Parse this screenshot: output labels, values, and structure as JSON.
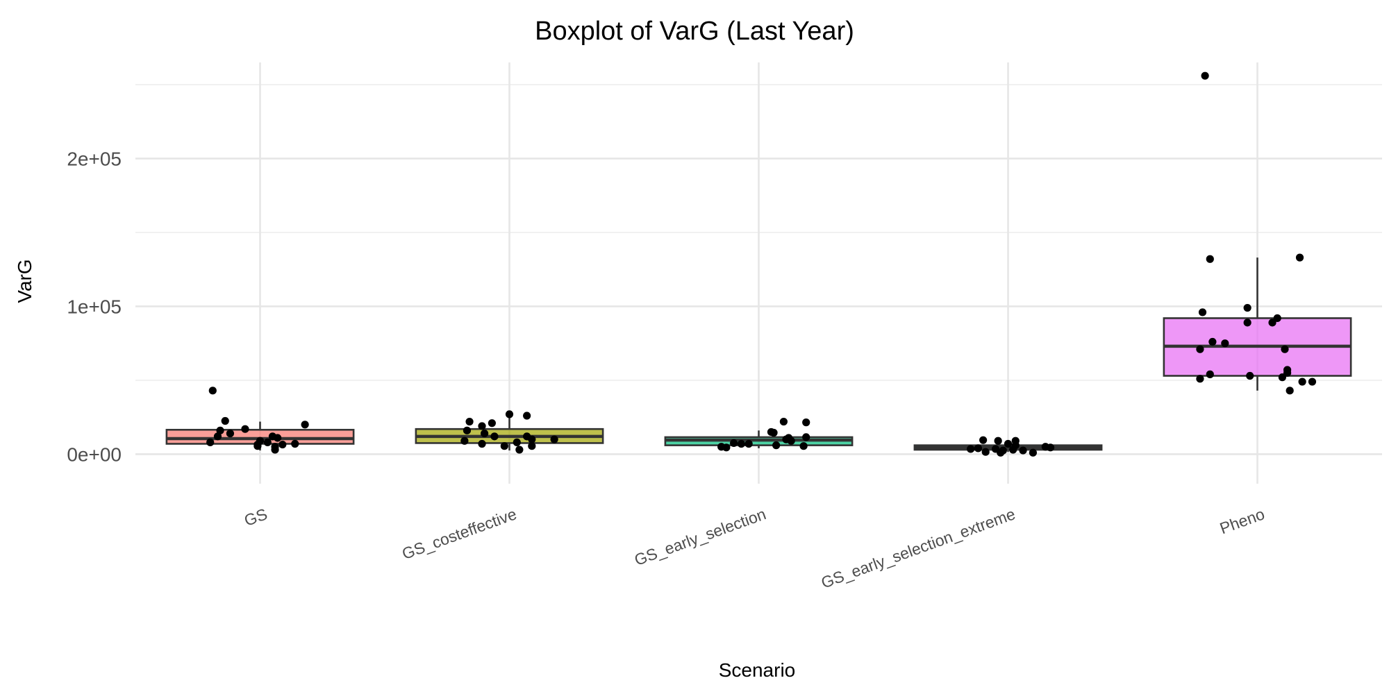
{
  "chart_data": {
    "type": "boxplot",
    "title": "Boxplot of VarG (Last Year)",
    "xlabel": "Scenario",
    "ylabel": "VarG",
    "categories": [
      "GS",
      "GS_costeffective",
      "GS_early_selection",
      "GS_early_selection_extreme",
      "Pheno"
    ],
    "ylim": [
      -20000,
      265000
    ],
    "y_ticks": [
      0,
      100000,
      200000
    ],
    "y_tick_labels": [
      "0e+00",
      "1e+05",
      "2e+05"
    ],
    "y_minor_ticks": [
      50000,
      150000,
      250000
    ],
    "grid": true,
    "legend": "none",
    "boxes": [
      {
        "category": "GS",
        "color": "#F8766D",
        "q1": 7000,
        "median": 10500,
        "q3": 16500,
        "whisker_low": 2500,
        "whisker_high": 22000
      },
      {
        "category": "GS_costeffective",
        "color": "#A3A500",
        "q1": 7500,
        "median": 12000,
        "q3": 17000,
        "whisker_low": 2500,
        "whisker_high": 27000
      },
      {
        "category": "GS_early_selection",
        "color": "#00BF7D",
        "q1": 6000,
        "median": 9500,
        "q3": 11500,
        "whisker_low": 4000,
        "whisker_high": 16000
      },
      {
        "category": "GS_early_selection_extreme",
        "color": "#00B0F6",
        "q1": 3000,
        "median": 4500,
        "q3": 6000,
        "whisker_low": 1500,
        "whisker_high": 9500
      },
      {
        "category": "Pheno",
        "color": "#E76BF3",
        "q1": 53000,
        "median": 73000,
        "q3": 92000,
        "whisker_low": 43000,
        "whisker_high": 133000
      }
    ],
    "points": [
      {
        "category": "GS",
        "jitter": -0.19,
        "y": 43000
      },
      {
        "category": "GS",
        "jitter": -0.14,
        "y": 22500
      },
      {
        "category": "GS",
        "jitter": -0.16,
        "y": 16000
      },
      {
        "category": "GS",
        "jitter": -0.06,
        "y": 17000
      },
      {
        "category": "GS",
        "jitter": 0.18,
        "y": 20000
      },
      {
        "category": "GS",
        "jitter": -0.17,
        "y": 12000
      },
      {
        "category": "GS",
        "jitter": -0.12,
        "y": 14000
      },
      {
        "category": "GS",
        "jitter": 0.05,
        "y": 12000
      },
      {
        "category": "GS",
        "jitter": 0.07,
        "y": 11000
      },
      {
        "category": "GS",
        "jitter": 0.0,
        "y": 9000
      },
      {
        "category": "GS",
        "jitter": 0.03,
        "y": 8000
      },
      {
        "category": "GS",
        "jitter": -0.2,
        "y": 8000
      },
      {
        "category": "GS",
        "jitter": -0.01,
        "y": 6500
      },
      {
        "category": "GS",
        "jitter": 0.09,
        "y": 6500
      },
      {
        "category": "GS",
        "jitter": 0.14,
        "y": 7000
      },
      {
        "category": "GS",
        "jitter": 0.06,
        "y": 5000
      },
      {
        "category": "GS",
        "jitter": -0.01,
        "y": 5500
      },
      {
        "category": "GS",
        "jitter": 0.06,
        "y": 3000
      },
      {
        "category": "GS_costeffective",
        "jitter": -0.16,
        "y": 22000
      },
      {
        "category": "GS_costeffective",
        "jitter": 0.0,
        "y": 27000
      },
      {
        "category": "GS_costeffective",
        "jitter": 0.07,
        "y": 26000
      },
      {
        "category": "GS_costeffective",
        "jitter": -0.11,
        "y": 19000
      },
      {
        "category": "GS_costeffective",
        "jitter": -0.07,
        "y": 21000
      },
      {
        "category": "GS_costeffective",
        "jitter": -0.17,
        "y": 16000
      },
      {
        "category": "GS_costeffective",
        "jitter": -0.1,
        "y": 14000
      },
      {
        "category": "GS_costeffective",
        "jitter": -0.06,
        "y": 12000
      },
      {
        "category": "GS_costeffective",
        "jitter": 0.07,
        "y": 12000
      },
      {
        "category": "GS_costeffective",
        "jitter": -0.18,
        "y": 9000
      },
      {
        "category": "GS_costeffective",
        "jitter": -0.11,
        "y": 7000
      },
      {
        "category": "GS_costeffective",
        "jitter": 0.09,
        "y": 10000
      },
      {
        "category": "GS_costeffective",
        "jitter": 0.18,
        "y": 10000
      },
      {
        "category": "GS_costeffective",
        "jitter": -0.02,
        "y": 5500
      },
      {
        "category": "GS_costeffective",
        "jitter": 0.03,
        "y": 8000
      },
      {
        "category": "GS_costeffective",
        "jitter": 0.04,
        "y": 3000
      },
      {
        "category": "GS_costeffective",
        "jitter": 0.09,
        "y": 5500
      },
      {
        "category": "GS_early_selection",
        "jitter": 0.1,
        "y": 22000
      },
      {
        "category": "GS_early_selection",
        "jitter": 0.19,
        "y": 21500
      },
      {
        "category": "GS_early_selection",
        "jitter": 0.05,
        "y": 15000
      },
      {
        "category": "GS_early_selection",
        "jitter": 0.06,
        "y": 14500
      },
      {
        "category": "GS_early_selection",
        "jitter": 0.12,
        "y": 11000
      },
      {
        "category": "GS_early_selection",
        "jitter": 0.19,
        "y": 11500
      },
      {
        "category": "GS_early_selection",
        "jitter": 0.11,
        "y": 10000
      },
      {
        "category": "GS_early_selection",
        "jitter": 0.13,
        "y": 9000
      },
      {
        "category": "GS_early_selection",
        "jitter": -0.1,
        "y": 7500
      },
      {
        "category": "GS_early_selection",
        "jitter": -0.07,
        "y": 7000
      },
      {
        "category": "GS_early_selection",
        "jitter": -0.04,
        "y": 7000
      },
      {
        "category": "GS_early_selection",
        "jitter": -0.15,
        "y": 5000
      },
      {
        "category": "GS_early_selection",
        "jitter": -0.13,
        "y": 4500
      },
      {
        "category": "GS_early_selection",
        "jitter": 0.07,
        "y": 6000
      },
      {
        "category": "GS_early_selection",
        "jitter": 0.18,
        "y": 5500
      },
      {
        "category": "GS_early_selection_extreme",
        "jitter": -0.1,
        "y": 9500
      },
      {
        "category": "GS_early_selection_extreme",
        "jitter": -0.04,
        "y": 9000
      },
      {
        "category": "GS_early_selection_extreme",
        "jitter": 0.03,
        "y": 9000
      },
      {
        "category": "GS_early_selection_extreme",
        "jitter": 0.0,
        "y": 7000
      },
      {
        "category": "GS_early_selection_extreme",
        "jitter": 0.03,
        "y": 6000
      },
      {
        "category": "GS_early_selection_extreme",
        "jitter": 0.15,
        "y": 5000
      },
      {
        "category": "GS_early_selection_extreme",
        "jitter": -0.12,
        "y": 4000
      },
      {
        "category": "GS_early_selection_extreme",
        "jitter": -0.15,
        "y": 3500
      },
      {
        "category": "GS_early_selection_extreme",
        "jitter": -0.05,
        "y": 3500
      },
      {
        "category": "GS_early_selection_extreme",
        "jitter": -0.02,
        "y": 2500
      },
      {
        "category": "GS_early_selection_extreme",
        "jitter": 0.02,
        "y": 3000
      },
      {
        "category": "GS_early_selection_extreme",
        "jitter": 0.06,
        "y": 2500
      },
      {
        "category": "GS_early_selection_extreme",
        "jitter": -0.09,
        "y": 1500
      },
      {
        "category": "GS_early_selection_extreme",
        "jitter": -0.03,
        "y": 1000
      },
      {
        "category": "GS_early_selection_extreme",
        "jitter": 0.1,
        "y": 1000
      },
      {
        "category": "GS_early_selection_extreme",
        "jitter": 0.17,
        "y": 4500
      },
      {
        "category": "Pheno",
        "jitter": -0.21,
        "y": 256000
      },
      {
        "category": "Pheno",
        "jitter": -0.19,
        "y": 132000
      },
      {
        "category": "Pheno",
        "jitter": 0.17,
        "y": 133000
      },
      {
        "category": "Pheno",
        "jitter": -0.04,
        "y": 99000
      },
      {
        "category": "Pheno",
        "jitter": -0.22,
        "y": 96000
      },
      {
        "category": "Pheno",
        "jitter": 0.08,
        "y": 92000
      },
      {
        "category": "Pheno",
        "jitter": -0.04,
        "y": 89000
      },
      {
        "category": "Pheno",
        "jitter": 0.06,
        "y": 89000
      },
      {
        "category": "Pheno",
        "jitter": -0.18,
        "y": 76000
      },
      {
        "category": "Pheno",
        "jitter": -0.13,
        "y": 75000
      },
      {
        "category": "Pheno",
        "jitter": -0.23,
        "y": 71000
      },
      {
        "category": "Pheno",
        "jitter": 0.11,
        "y": 71000
      },
      {
        "category": "Pheno",
        "jitter": 0.12,
        "y": 57000
      },
      {
        "category": "Pheno",
        "jitter": 0.12,
        "y": 55000
      },
      {
        "category": "Pheno",
        "jitter": -0.19,
        "y": 54000
      },
      {
        "category": "Pheno",
        "jitter": -0.03,
        "y": 53000
      },
      {
        "category": "Pheno",
        "jitter": 0.1,
        "y": 52000
      },
      {
        "category": "Pheno",
        "jitter": -0.23,
        "y": 51000
      },
      {
        "category": "Pheno",
        "jitter": 0.18,
        "y": 49000
      },
      {
        "category": "Pheno",
        "jitter": 0.22,
        "y": 49000
      },
      {
        "category": "Pheno",
        "jitter": 0.13,
        "y": 43000
      }
    ]
  }
}
